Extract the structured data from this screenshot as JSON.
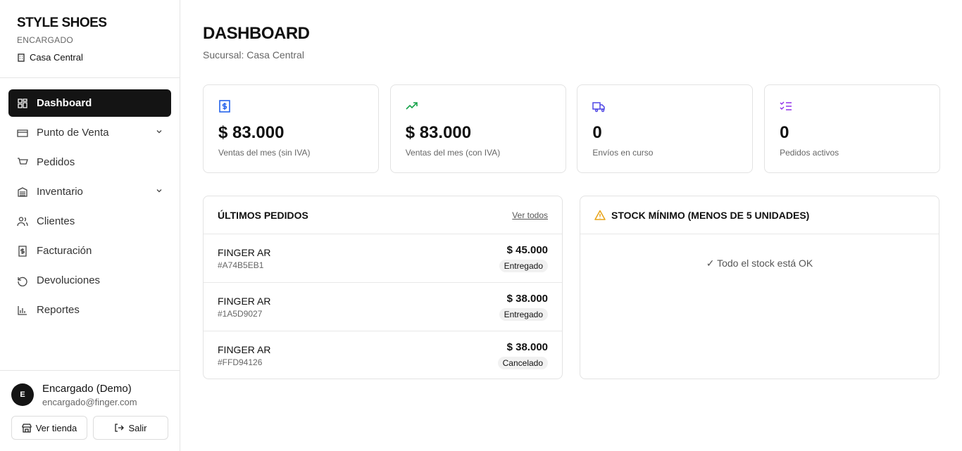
{
  "sidebar": {
    "brand": "STYLE SHOES",
    "role": "ENCARGADO",
    "branch": "Casa Central",
    "nav": [
      "Dashboard",
      "Punto de Venta",
      "Pedidos",
      "Inventario",
      "Clientes",
      "Facturación",
      "Devoluciones",
      "Reportes"
    ],
    "user": {
      "initial": "E",
      "name": "Encargado (Demo)",
      "email": "encargado@finger.com"
    },
    "buttons": [
      "Ver tienda",
      "Salir"
    ]
  },
  "header": {
    "title": "DASHBOARD",
    "subtitle": "Sucursal: Casa Central"
  },
  "stats": [
    {
      "value": "$ 83.000",
      "label": "Ventas del mes (sin IVA)"
    },
    {
      "value": "$ 83.000",
      "label": "Ventas del mes (con IVA)"
    },
    {
      "value": "0",
      "label": "Envíos en curso"
    },
    {
      "value": "0",
      "label": "Pedidos activos"
    }
  ],
  "orders": {
    "title": "ÚLTIMOS PEDIDOS",
    "link": "Ver todos",
    "rows": [
      {
        "customer": "FINGER AR",
        "id": "#A74B5EB1",
        "amount": "$ 45.000",
        "status": "Entregado"
      },
      {
        "customer": "FINGER AR",
        "id": "#1A5D9027",
        "amount": "$ 38.000",
        "status": "Entregado"
      },
      {
        "customer": "FINGER AR",
        "id": "#FFD94126",
        "amount": "$ 38.000",
        "status": "Cancelado"
      }
    ]
  },
  "stock": {
    "title": "STOCK MÍNIMO (MENOS DE 5 UNIDADES)",
    "message": "✓ Todo el stock está OK"
  }
}
